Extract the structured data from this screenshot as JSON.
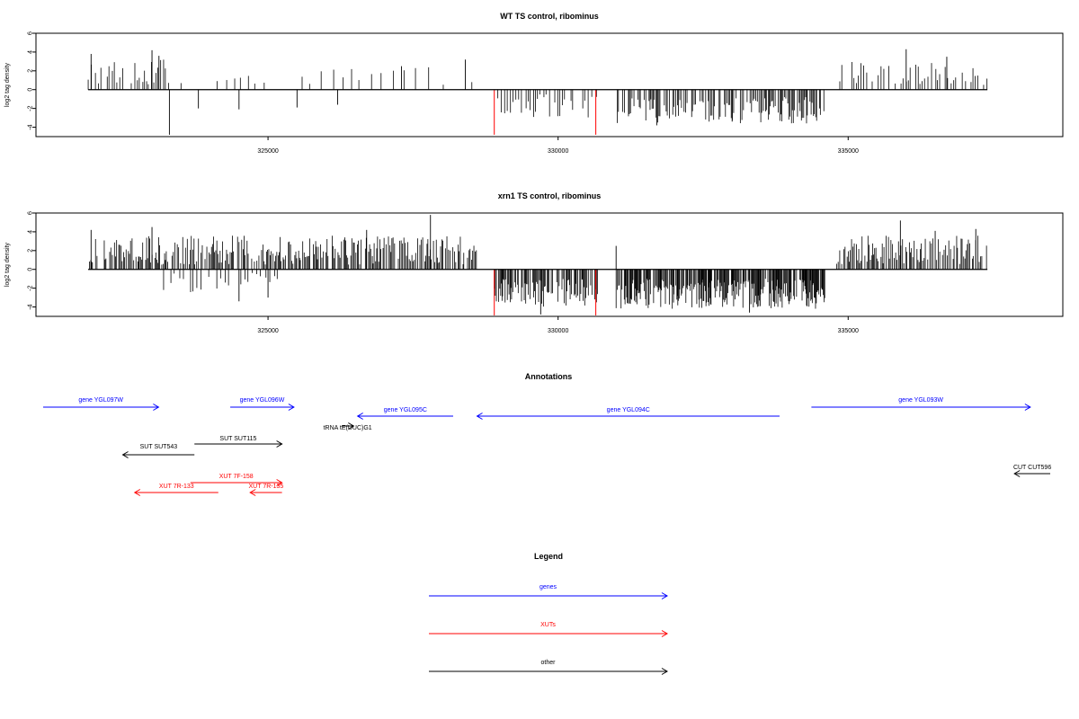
{
  "colors": {
    "gene": "#0000ff",
    "xut": "#ff0000",
    "other": "#000000",
    "special_peak": "#ff0000"
  },
  "chart_data": [
    {
      "type": "bar",
      "title": "WT TS control, ribominus",
      "ylabel": "log2 tag density",
      "ylim": [
        -5,
        6
      ],
      "xlim": [
        321000,
        338700
      ],
      "x_ticks": [
        325000,
        330000,
        335000
      ],
      "y_ticks": [
        -4,
        -2,
        0,
        2,
        4,
        6
      ],
      "baseline_span": [
        321900,
        337400
      ],
      "segments": [
        {
          "from": 321900,
          "to": 323300,
          "sign": 1,
          "lo": 0.5,
          "hi": 3.2,
          "step": 45
        },
        {
          "from": 323500,
          "to": 325200,
          "sign": 1,
          "lo": 0.3,
          "hi": 2.0,
          "step": 120
        },
        {
          "from": 325200,
          "to": 328600,
          "sign": 1,
          "lo": 0.5,
          "hi": 2.5,
          "step": 180
        },
        {
          "from": 328900,
          "to": 330700,
          "sign": -1,
          "lo": 0.5,
          "hi": 3.0,
          "step": 45
        },
        {
          "from": 331000,
          "to": 334600,
          "sign": -1,
          "lo": 0.8,
          "hi": 3.6,
          "step": 22
        },
        {
          "from": 334800,
          "to": 337400,
          "sign": 1,
          "lo": 0.5,
          "hi": 3.0,
          "step": 45
        }
      ],
      "peaks": [
        {
          "x": 321950,
          "y": 3.8
        },
        {
          "x": 323000,
          "y": 4.2
        },
        {
          "x": 323120,
          "y": 3.6
        },
        {
          "x": 323300,
          "y": -4.8
        },
        {
          "x": 323800,
          "y": -2.0
        },
        {
          "x": 324500,
          "y": -2.1
        },
        {
          "x": 325500,
          "y": -1.9
        },
        {
          "x": 326200,
          "y": -1.6
        },
        {
          "x": 327300,
          "y": 2.5
        },
        {
          "x": 328400,
          "y": 3.2
        },
        {
          "x": 331700,
          "y": -3.8
        },
        {
          "x": 333000,
          "y": -3.4
        },
        {
          "x": 336000,
          "y": 4.3
        },
        {
          "x": 336700,
          "y": 3.5
        }
      ],
      "special_peaks": [
        {
          "x": 328900,
          "y": -4.8
        },
        {
          "x": 330650,
          "y": -4.8
        }
      ]
    },
    {
      "type": "bar",
      "title": "xrn1 TS control, ribominus",
      "ylabel": "log2 tag density",
      "ylim": [
        -5,
        6
      ],
      "xlim": [
        321000,
        338700
      ],
      "x_ticks": [
        325000,
        330000,
        335000
      ],
      "y_ticks": [
        -4,
        -2,
        0,
        2,
        4,
        6
      ],
      "baseline_span": [
        321900,
        337400
      ],
      "segments": [
        {
          "from": 321900,
          "to": 328600,
          "sign": 1,
          "lo": 0.5,
          "hi": 3.6,
          "step": 20
        },
        {
          "from": 323200,
          "to": 325200,
          "sign": -1,
          "lo": 0.3,
          "hi": 2.5,
          "step": 60
        },
        {
          "from": 328900,
          "to": 330700,
          "sign": -1,
          "lo": 1.0,
          "hi": 4.0,
          "step": 15
        },
        {
          "from": 331000,
          "to": 334600,
          "sign": -1,
          "lo": 1.0,
          "hi": 4.2,
          "step": 12
        },
        {
          "from": 334800,
          "to": 337400,
          "sign": 1,
          "lo": 0.5,
          "hi": 3.6,
          "step": 20
        }
      ],
      "peaks": [
        {
          "x": 321950,
          "y": 4.2
        },
        {
          "x": 323000,
          "y": 4.5
        },
        {
          "x": 324500,
          "y": -3.4
        },
        {
          "x": 325000,
          "y": -3.0
        },
        {
          "x": 326700,
          "y": 4.2
        },
        {
          "x": 327800,
          "y": 5.8
        },
        {
          "x": 329700,
          "y": -4.8
        },
        {
          "x": 331000,
          "y": 2.5
        },
        {
          "x": 333300,
          "y": -4.6
        },
        {
          "x": 335900,
          "y": 5.2
        },
        {
          "x": 336500,
          "y": 4.1
        },
        {
          "x": 337200,
          "y": 4.3
        }
      ],
      "special_peaks": [
        {
          "x": 328900,
          "y": -4.9
        },
        {
          "x": 330650,
          "y": -4.9
        }
      ]
    }
  ],
  "annotations": {
    "title": "Annotations",
    "items": [
      {
        "label": "gene YGL097W",
        "kind": "gene",
        "start": 321000,
        "end": 323900,
        "dir": "right",
        "row": 0
      },
      {
        "label": "gene YGL096W",
        "kind": "gene",
        "start": 325700,
        "end": 327300,
        "dir": "right",
        "row": 0
      },
      {
        "label": "gene YGL095C",
        "kind": "gene",
        "start": 328900,
        "end": 331300,
        "dir": "left",
        "row": 1
      },
      {
        "label": "gene YGL094C",
        "kind": "gene",
        "start": 331900,
        "end": 339500,
        "dir": "left",
        "row": 1
      },
      {
        "label": "gene YGL093W",
        "kind": "gene",
        "start": 340300,
        "end": 345800,
        "dir": "right",
        "row": 0
      },
      {
        "label": "tRNA tE(UUC)G1",
        "kind": "other",
        "start": 328500,
        "end": 328800,
        "dir": "right",
        "row": 2
      },
      {
        "label": "SUT SUT115",
        "kind": "other",
        "start": 324800,
        "end": 327000,
        "dir": "right",
        "row": 4
      },
      {
        "label": "SUT SUT543",
        "kind": "other",
        "start": 323000,
        "end": 324800,
        "dir": "left",
        "row": 5
      },
      {
        "label": "CUT CUT596",
        "kind": "other",
        "start": 345400,
        "end": 346300,
        "dir": "left",
        "row": 7
      },
      {
        "label": "XUT 7F-158",
        "kind": "xut",
        "start": 324700,
        "end": 327000,
        "dir": "right",
        "row": 8
      },
      {
        "label": "XUT 7R-133",
        "kind": "xut",
        "start": 323300,
        "end": 325400,
        "dir": "left",
        "row": 9
      },
      {
        "label": "XUT 7R-135",
        "kind": "xut",
        "start": 326200,
        "end": 327000,
        "dir": "left",
        "row": 9
      }
    ]
  },
  "legend": {
    "title": "Legend",
    "items": [
      {
        "label": "genes",
        "kind": "gene"
      },
      {
        "label": "XUTs",
        "kind": "xut"
      },
      {
        "label": "other",
        "kind": "other"
      }
    ]
  }
}
